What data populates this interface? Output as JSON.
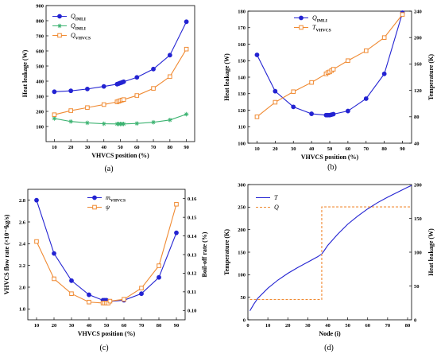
{
  "panels": [
    {
      "id": "a",
      "label": "(a)",
      "xlabel": "VHVCS position (%)",
      "ylabel_left": "Heat leakage (W)",
      "xlim": [
        5,
        95
      ],
      "xticks": [
        10,
        20,
        30,
        40,
        50,
        60,
        70,
        80,
        90
      ],
      "ylim_left": [
        0,
        900
      ],
      "yticks_left": [
        100,
        200,
        300,
        400,
        500,
        600,
        700,
        800,
        900
      ],
      "legend_position": "top-left",
      "series": [
        {
          "name": "Q",
          "sub": "IMLI",
          "axis": "left",
          "color": "#2323d2",
          "marker": "circle",
          "x": [
            10,
            20,
            30,
            40,
            48,
            49,
            50,
            51,
            52,
            60,
            70,
            80,
            90
          ],
          "y": [
            330,
            336,
            348,
            365,
            380,
            384,
            388,
            392,
            396,
            425,
            480,
            572,
            793
          ]
        },
        {
          "name": "Q",
          "sub": "IMLI",
          "axis": "left",
          "color": "#3cb371",
          "marker": "star",
          "x": [
            10,
            20,
            30,
            40,
            48,
            49,
            50,
            51,
            52,
            60,
            70,
            80,
            90
          ],
          "y": [
            153,
            133,
            124,
            118,
            117,
            117,
            117,
            117,
            117,
            120,
            128,
            143,
            181
          ]
        },
        {
          "name": "Q",
          "sub": "VHVCS",
          "axis": "left",
          "color": "#f08a32",
          "marker": "square",
          "x": [
            10,
            20,
            30,
            40,
            48,
            49,
            50,
            51,
            52,
            60,
            70,
            80,
            90
          ],
          "y": [
            178,
            205,
            225,
            245,
            263,
            267,
            271,
            275,
            278,
            305,
            352,
            430,
            612
          ]
        }
      ]
    },
    {
      "id": "b",
      "label": "(b)",
      "xlabel": "VHVCS position (%)",
      "ylabel_left": "Heat leakage (W)",
      "ylabel_right": "Temperature (K)",
      "xlim": [
        5,
        95
      ],
      "xticks": [
        10,
        20,
        30,
        40,
        50,
        60,
        70,
        80,
        90
      ],
      "ylim_left": [
        100,
        180
      ],
      "yticks_left": [
        100,
        110,
        120,
        130,
        140,
        150,
        160,
        170,
        180
      ],
      "ylim_right": [
        40,
        240
      ],
      "yticks_right": [
        40,
        80,
        120,
        160,
        200,
        240
      ],
      "legend_position": "top-center",
      "series": [
        {
          "name": "Q",
          "sub": "IMLI",
          "axis": "left",
          "color": "#2323d2",
          "marker": "circle",
          "x": [
            10,
            20,
            30,
            40,
            48,
            49,
            50,
            51,
            52,
            60,
            70,
            80,
            90
          ],
          "y": [
            153.5,
            131.5,
            122,
            117.8,
            117,
            117,
            117,
            117.3,
            117.6,
            119.5,
            127,
            142,
            179
          ]
        },
        {
          "name": "T",
          "sub": "VHVCS",
          "axis": "right",
          "color": "#f08a32",
          "marker": "square",
          "x": [
            10,
            20,
            30,
            40,
            48,
            49,
            50,
            51,
            52,
            60,
            70,
            80,
            90
          ],
          "y": [
            80,
            102,
            118,
            132,
            145,
            147,
            148,
            150,
            152,
            165,
            180,
            200,
            235
          ]
        }
      ]
    },
    {
      "id": "c",
      "label": "(c)",
      "xlabel": "VHVCS position (%)",
      "ylabel_left": "VHVCS flow rate (×10⁻⁴kg/s)",
      "ylabel_right": "Boil-off rate (%)",
      "xlim": [
        5,
        95
      ],
      "xticks": [
        10,
        20,
        30,
        40,
        50,
        60,
        70,
        80,
        90
      ],
      "ylim_left": [
        1.7,
        2.9
      ],
      "yticks_left": [
        1.8,
        2.0,
        2.2,
        2.4,
        2.6,
        2.8
      ],
      "ylim_right": [
        0.095,
        0.165
      ],
      "yticks_right": [
        0.1,
        0.11,
        0.12,
        0.13,
        0.14,
        0.15,
        0.16
      ],
      "legend_position": "top-center",
      "series": [
        {
          "name": "m",
          "sub": "VHVCS",
          "axis": "left",
          "color": "#2323d2",
          "marker": "circle",
          "x": [
            10,
            20,
            30,
            40,
            48,
            49,
            50,
            51,
            52,
            60,
            70,
            80,
            90
          ],
          "y": [
            2.8,
            2.31,
            2.06,
            1.93,
            1.88,
            1.88,
            1.88,
            1.87,
            1.87,
            1.88,
            1.94,
            2.09,
            2.5
          ]
        },
        {
          "name": "ψ",
          "sub": "",
          "axis": "right",
          "color": "#f08a32",
          "marker": "square",
          "x": [
            10,
            20,
            30,
            40,
            48,
            49,
            50,
            51,
            52,
            60,
            70,
            80,
            90
          ],
          "y": [
            0.137,
            0.117,
            0.109,
            0.1045,
            0.104,
            0.104,
            0.104,
            0.104,
            0.105,
            0.106,
            0.112,
            0.124,
            0.157
          ]
        }
      ]
    },
    {
      "id": "d",
      "label": "(d)",
      "xlabel": "Node (i)",
      "ylabel_left": "Temperature (K)",
      "ylabel_right": "Heat leakage (W)",
      "xlim": [
        0,
        82
      ],
      "xticks": [
        0,
        10,
        20,
        30,
        40,
        50,
        60,
        70,
        80
      ],
      "ylim_left": [
        0,
        300
      ],
      "yticks_left": [
        0,
        50,
        100,
        150,
        200,
        250,
        300
      ],
      "ylim_right": [
        0,
        200
      ],
      "yticks_right": [
        0,
        50,
        100,
        150,
        200
      ],
      "legend_position": "top-left",
      "series": [
        {
          "name": "T",
          "sub": "",
          "axis": "left",
          "color": "#2323d2",
          "marker": "none",
          "dash": false,
          "x": [
            1,
            3,
            5,
            10,
            15,
            20,
            25,
            30,
            35,
            37,
            38,
            40,
            45,
            50,
            55,
            60,
            65,
            70,
            75,
            80,
            82
          ],
          "y": [
            20,
            35,
            48,
            70,
            88,
            103,
            116,
            128,
            140,
            146,
            152,
            165,
            190,
            212,
            230,
            246,
            260,
            272,
            283,
            294,
            298
          ]
        },
        {
          "name": "Q",
          "sub": "",
          "axis": "right",
          "color": "#f08a32",
          "marker": "none",
          "dash": true,
          "x": [
            1,
            37,
            37,
            82
          ],
          "y": [
            30,
            30,
            167,
            167
          ]
        }
      ]
    }
  ]
}
